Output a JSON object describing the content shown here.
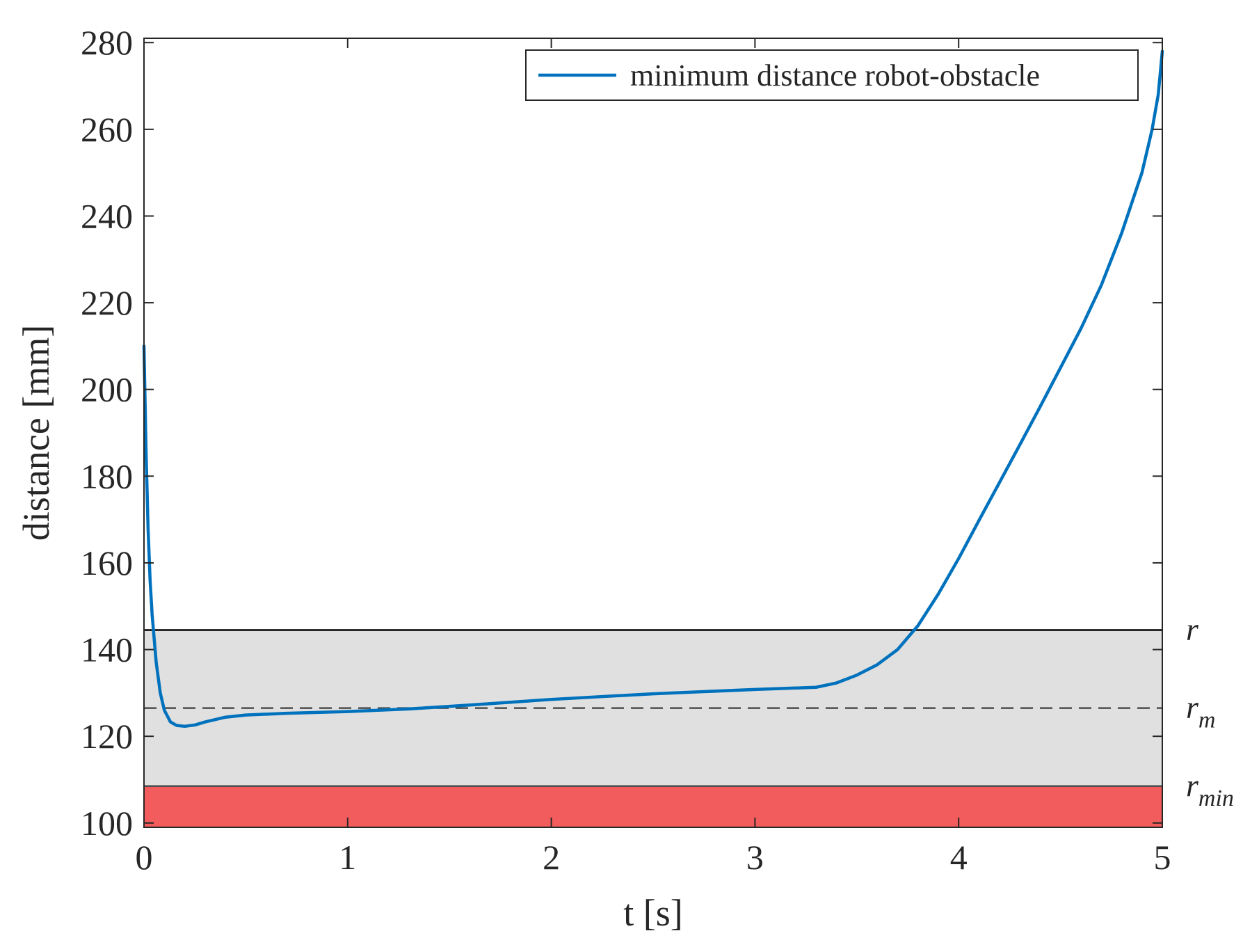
{
  "chart_data": {
    "type": "line",
    "xlabel": "t [s]",
    "ylabel": "distance [mm]",
    "xlim": [
      0,
      5
    ],
    "ylim": [
      99,
      281
    ],
    "x_ticks": [
      0,
      1,
      2,
      3,
      4,
      5
    ],
    "y_ticks": [
      100,
      120,
      140,
      160,
      180,
      200,
      220,
      240,
      260,
      280
    ],
    "grid": false,
    "legend_position": "top-right",
    "series": [
      {
        "name": "minimum distance robot-obstacle",
        "color": "#0072BD",
        "x": [
          0,
          0.01,
          0.02,
          0.03,
          0.04,
          0.06,
          0.08,
          0.1,
          0.13,
          0.16,
          0.2,
          0.25,
          0.3,
          0.4,
          0.5,
          0.7,
          1.0,
          1.3,
          1.6,
          2.0,
          2.5,
          3.0,
          3.3,
          3.4,
          3.5,
          3.6,
          3.7,
          3.8,
          3.9,
          4.0,
          4.1,
          4.2,
          4.3,
          4.4,
          4.5,
          4.6,
          4.7,
          4.8,
          4.9,
          4.95,
          4.98,
          5.0
        ],
        "y": [
          210,
          186,
          168,
          156,
          148,
          137,
          130,
          126,
          123.3,
          122.5,
          122.3,
          122.6,
          123.3,
          124.4,
          124.9,
          125.3,
          125.7,
          126.3,
          127.2,
          128.5,
          129.8,
          130.8,
          131.3,
          132.3,
          134.1,
          136.5,
          140.0,
          145.5,
          152.8,
          161.0,
          169.8,
          178.5,
          187.2,
          196.0,
          205.0,
          214.0,
          224.0,
          236.0,
          250.0,
          260.0,
          268.0,
          278.0
        ]
      }
    ],
    "reference_lines": [
      {
        "label": "r",
        "y": 144.5,
        "style": "solid",
        "color": "#000000"
      },
      {
        "label": "r",
        "subscript": "m",
        "y": 126.5,
        "style": "dashed",
        "color": "#4d4d4d"
      },
      {
        "label": "r",
        "subscript": "min",
        "y": 108.5,
        "style": "solid",
        "color": "#4d4d4d"
      }
    ],
    "bands": [
      {
        "from": 108.5,
        "to": 144.5,
        "color": "#e0e0e0"
      },
      {
        "from": 99,
        "to": 108.5,
        "color": "#f25c5c"
      }
    ]
  }
}
